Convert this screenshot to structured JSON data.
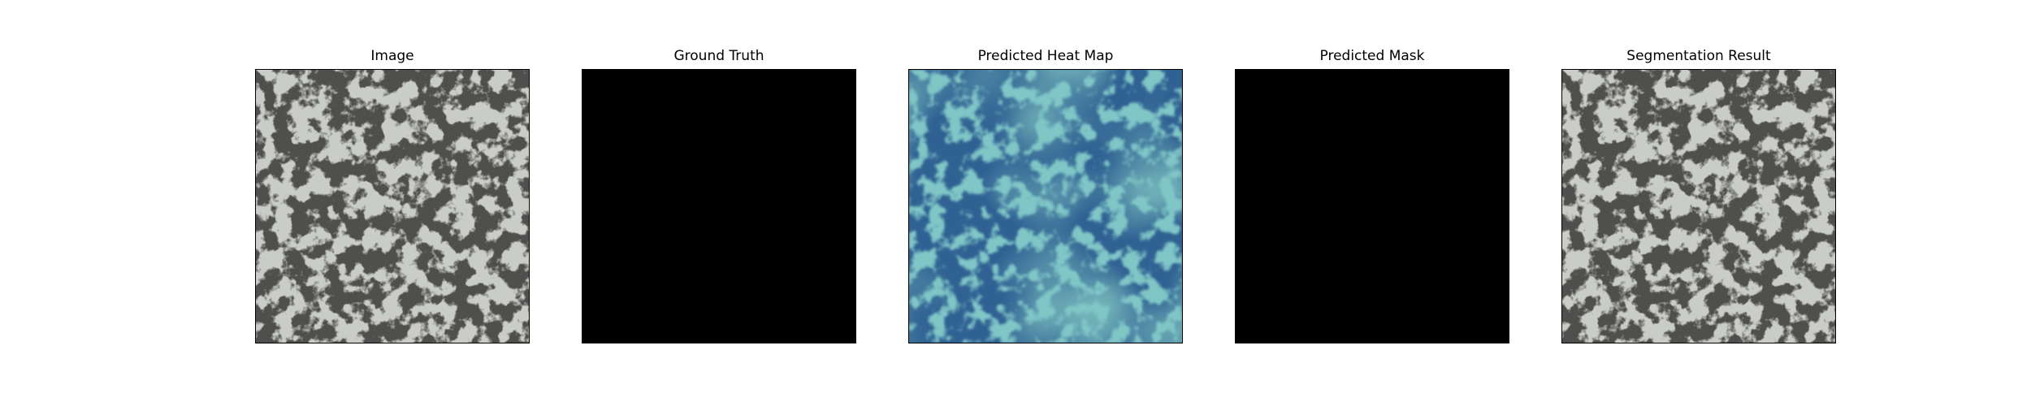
{
  "panels": [
    {
      "title": "Image",
      "kind": "texture"
    },
    {
      "title": "Ground Truth",
      "kind": "black"
    },
    {
      "title": "Predicted Heat Map",
      "kind": "heatmap"
    },
    {
      "title": "Predicted Mask",
      "kind": "black"
    },
    {
      "title": "Segmentation Result",
      "kind": "texture"
    }
  ],
  "colors": {
    "texture_base": "#3f403d",
    "texture_light": "#9a9d94",
    "heat_base": "#2f5f8f",
    "heat_green": "#3aa38a",
    "mask": "#000000"
  }
}
